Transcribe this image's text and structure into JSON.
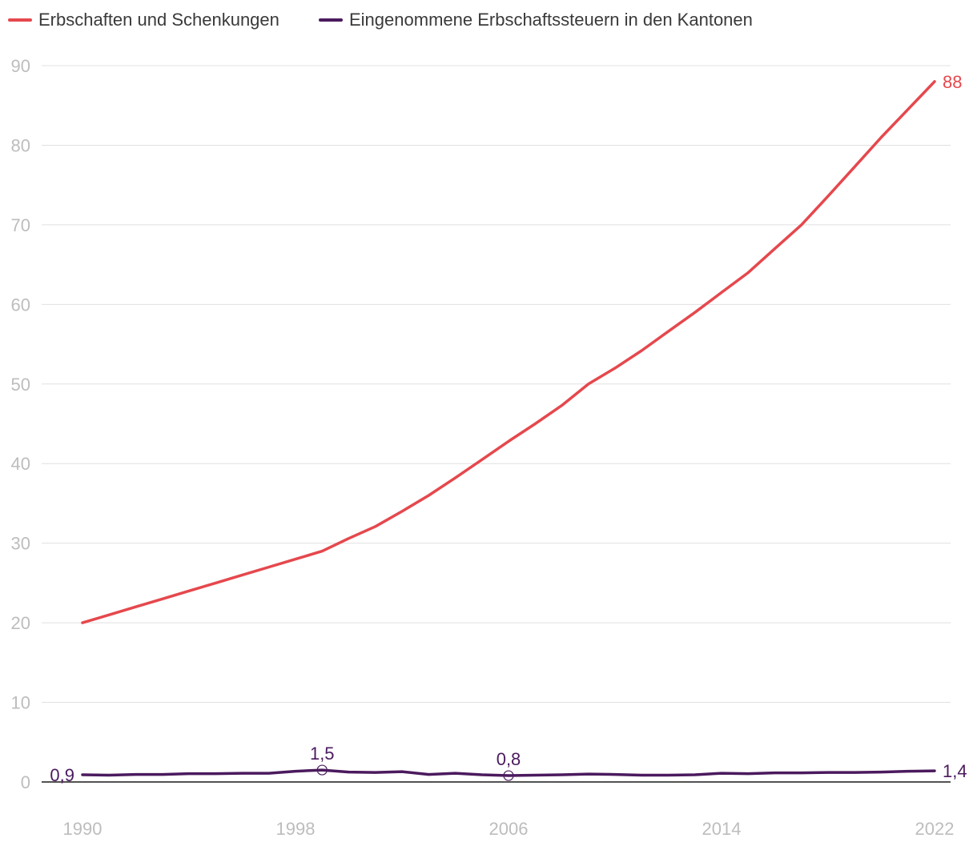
{
  "colors": {
    "series_0": "#e5484d",
    "series_1": "#4b1a5e",
    "grid": "#e0e0e0",
    "tick": "#bdbdbd",
    "axis": "#1a1a1a"
  },
  "legend": {
    "items": [
      {
        "label": "Erbschaften und Schenkungen"
      },
      {
        "label": "Eingenommene Erbschaftssteuern in den Kantonen"
      }
    ]
  },
  "chart_data": {
    "type": "line",
    "xlim": [
      1990,
      2022
    ],
    "ylim": [
      0,
      90
    ],
    "y_ticks": [
      0,
      10,
      20,
      30,
      40,
      50,
      60,
      70,
      80,
      90
    ],
    "x_ticks": [
      1990,
      1998,
      2006,
      2014,
      2022
    ],
    "grid": true,
    "legend_position": "top-left",
    "series": [
      {
        "name": "Erbschaften und Schenkungen",
        "x": [
          1990,
          1991,
          1992,
          1993,
          1994,
          1995,
          1996,
          1997,
          1998,
          1999,
          2000,
          2001,
          2002,
          2003,
          2004,
          2005,
          2006,
          2007,
          2008,
          2009,
          2010,
          2011,
          2012,
          2013,
          2014,
          2015,
          2016,
          2017,
          2018,
          2019,
          2020,
          2021,
          2022
        ],
        "values": [
          20,
          21,
          22,
          23,
          24,
          25,
          26,
          27,
          28,
          29,
          30.6,
          32.1,
          34,
          36,
          38.2,
          40.5,
          42.8,
          45,
          47.3,
          50,
          52,
          54.2,
          56.6,
          59,
          61.5,
          64,
          67,
          70,
          73.6,
          77.3,
          81,
          84.5,
          88
        ]
      },
      {
        "name": "Eingenommene Erbschaftssteuern in den Kantonen",
        "x": [
          1990,
          1991,
          1992,
          1993,
          1994,
          1995,
          1996,
          1997,
          1998,
          1999,
          2000,
          2001,
          2002,
          2003,
          2004,
          2005,
          2006,
          2007,
          2008,
          2009,
          2010,
          2011,
          2012,
          2013,
          2014,
          2015,
          2016,
          2017,
          2018,
          2019,
          2020,
          2021,
          2022
        ],
        "values": [
          0.9,
          0.85,
          0.95,
          0.95,
          1.05,
          1.05,
          1.1,
          1.1,
          1.35,
          1.5,
          1.25,
          1.2,
          1.3,
          0.95,
          1.1,
          0.9,
          0.8,
          0.85,
          0.9,
          1.0,
          0.95,
          0.85,
          0.85,
          0.9,
          1.1,
          1.05,
          1.15,
          1.15,
          1.2,
          1.2,
          1.25,
          1.35,
          1.4
        ]
      }
    ],
    "labels": [
      {
        "series": 0,
        "x": 2022,
        "y": 88,
        "text": "88",
        "anchor": "end-right",
        "marker": false
      },
      {
        "series": 1,
        "x": 1990,
        "y": 0.9,
        "text": "0,9",
        "anchor": "left",
        "marker": false
      },
      {
        "series": 1,
        "x": 1999,
        "y": 1.5,
        "text": "1,5",
        "anchor": "above",
        "marker": true
      },
      {
        "series": 1,
        "x": 2006,
        "y": 0.8,
        "text": "0,8",
        "anchor": "above",
        "marker": true
      },
      {
        "series": 1,
        "x": 2022,
        "y": 1.4,
        "text": "1,4",
        "anchor": "end-right",
        "marker": false
      }
    ]
  }
}
